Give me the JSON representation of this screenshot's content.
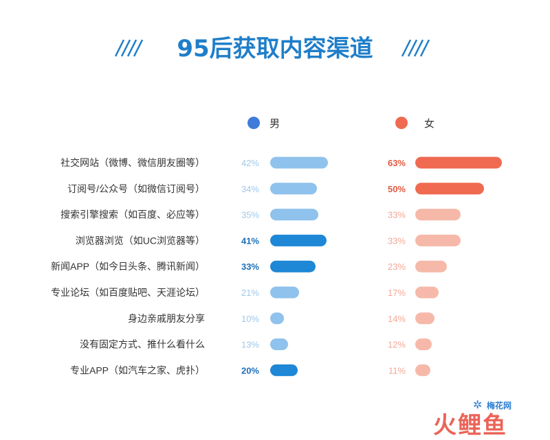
{
  "chart_data": {
    "type": "bar",
    "title": "95后获取内容渠道",
    "categories": [
      "社交网站（微博、微信朋友圈等）",
      "订阅号/公众号（如微信订阅号）",
      "搜索引擎搜索（如百度、必应等）",
      "浏览器浏览（如UC浏览器等）",
      "新闻APP（如今日头条、腾讯新闻）",
      "专业论坛（如百度贴吧、天涯论坛）",
      "身边亲戚朋友分享",
      "没有固定方式、推什么看什么",
      "专业APP（如汽车之家、虎扑）"
    ],
    "series": [
      {
        "name": "男",
        "values": [
          42,
          34,
          35,
          41,
          33,
          21,
          10,
          13,
          20
        ],
        "labels": [
          "42%",
          "34%",
          "35%",
          "41%",
          "33%",
          "21%",
          "10%",
          "13%",
          "20%"
        ],
        "highlight": [
          false,
          false,
          false,
          true,
          true,
          false,
          false,
          false,
          true
        ],
        "color": "#3f7bd9",
        "bar_color_highlight": "#1e87d6",
        "bar_color_normal": "#8fc2ec",
        "label_color_highlight": "#1e6fb8",
        "label_color_normal": "#9ec8ea"
      },
      {
        "name": "女",
        "values": [
          63,
          50,
          33,
          33,
          23,
          17,
          14,
          12,
          11
        ],
        "labels": [
          "63%",
          "50%",
          "33%",
          "33%",
          "23%",
          "17%",
          "14%",
          "12%",
          "11%"
        ],
        "highlight": [
          true,
          true,
          false,
          false,
          false,
          false,
          false,
          false,
          false
        ],
        "color": "#ef6a50",
        "bar_color_highlight": "#ef6a50",
        "bar_color_normal": "#f6b9a9",
        "label_color_highlight": "#e05a42",
        "label_color_normal": "#f3a797"
      }
    ],
    "title_color": "#1f7ec9",
    "legend_placement": "top",
    "grid": false
  },
  "watermark": {
    "small": "梅花网",
    "big": "火鲤鱼"
  }
}
